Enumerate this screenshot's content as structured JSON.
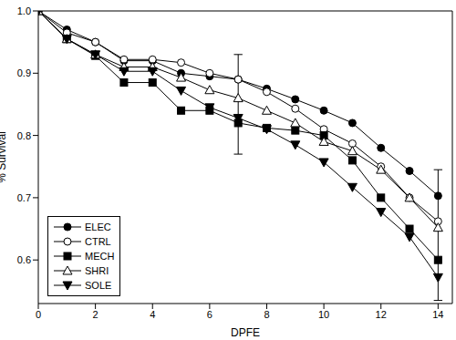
{
  "chart_data": {
    "type": "line",
    "x_label": "DPFE",
    "y_label": "% Survival",
    "x": [
      0,
      1,
      2,
      3,
      4,
      5,
      6,
      7,
      8,
      9,
      10,
      11,
      12,
      13,
      14
    ],
    "series": [
      {
        "name": "ELEC",
        "color": "#000000",
        "marker": "circle",
        "values": [
          1.0,
          0.97,
          0.95,
          0.92,
          0.92,
          0.9,
          0.895,
          0.89,
          0.875,
          0.858,
          0.84,
          0.82,
          0.78,
          0.743,
          0.703
        ]
      },
      {
        "name": "CTRL",
        "color": "#000000",
        "marker": "circle_open",
        "values": [
          1.0,
          0.965,
          0.95,
          0.922,
          0.922,
          0.917,
          0.9,
          0.89,
          0.87,
          0.843,
          0.81,
          0.787,
          0.75,
          0.7,
          0.662
        ]
      },
      {
        "name": "MECH",
        "color": "#000000",
        "marker": "square",
        "values": [
          1.0,
          0.955,
          0.928,
          0.885,
          0.885,
          0.84,
          0.84,
          0.82,
          0.812,
          0.808,
          0.8,
          0.76,
          0.7,
          0.65,
          0.6
        ]
      },
      {
        "name": "SHRI",
        "color": "#000000",
        "marker": "triangle_open",
        "values": [
          1.0,
          0.955,
          0.93,
          0.91,
          0.91,
          0.893,
          0.873,
          0.86,
          0.84,
          0.82,
          0.79,
          0.775,
          0.745,
          0.7,
          0.652
        ]
      },
      {
        "name": "SOLE",
        "color": "#000000",
        "marker": "triangle_down",
        "values": [
          1.0,
          0.955,
          0.93,
          0.903,
          0.903,
          0.872,
          0.845,
          0.828,
          0.81,
          0.785,
          0.757,
          0.717,
          0.677,
          0.637,
          0.572
        ]
      }
    ],
    "error_bars": [
      {
        "x": 7,
        "low": 0.77,
        "high": 0.93
      },
      {
        "x": 14,
        "low": 0.535,
        "high": 0.745
      }
    ],
    "xlim": [
      0,
      14.5
    ],
    "xticks": [
      0,
      2,
      4,
      6,
      8,
      10,
      12,
      14
    ],
    "ylim": [
      0.53,
      1.0
    ],
    "yticks": [
      0.6,
      0.7,
      0.8,
      0.9,
      {
        "value": 1,
        "label": "1.0"
      }
    ],
    "legend": "lower left"
  }
}
